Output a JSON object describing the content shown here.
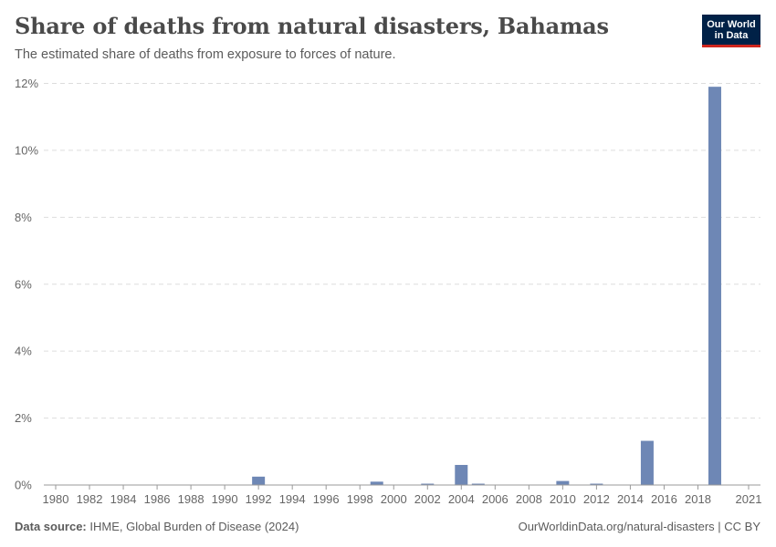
{
  "header": {
    "title": "Share of deaths from natural disasters, Bahamas",
    "subtitle": "The estimated share of deaths from exposure to forces of nature."
  },
  "logo": {
    "line1": "Our World",
    "line2": "in Data"
  },
  "footer": {
    "source_label": "Data source:",
    "source_text": "IHME, Global Burden of Disease (2024)",
    "link_text": "OurWorldinData.org/natural-disasters | CC BY"
  },
  "colors": {
    "bar": "#6e87b5",
    "logo_bg": "#002147",
    "logo_accent": "#ce261e"
  },
  "chart_data": {
    "type": "bar",
    "title": "Share of deaths from natural disasters, Bahamas",
    "xlim": [
      1980,
      2021
    ],
    "ylim": [
      0,
      12
    ],
    "y_ticks": [
      0,
      2,
      4,
      6,
      8,
      10,
      12
    ],
    "y_tick_labels": [
      "0%",
      "2%",
      "4%",
      "6%",
      "8%",
      "10%",
      "12%"
    ],
    "x_ticks": [
      1980,
      1982,
      1984,
      1986,
      1988,
      1990,
      1992,
      1994,
      1996,
      1998,
      2000,
      2002,
      2004,
      2006,
      2008,
      2010,
      2012,
      2014,
      2016,
      2018,
      2021
    ],
    "x_tick_labels": [
      "1980",
      "1982",
      "1984",
      "1986",
      "1988",
      "1990",
      "1992",
      "1994",
      "1996",
      "1998",
      "2000",
      "2002",
      "2004",
      "2006",
      "2008",
      "2010",
      "2012",
      "2014",
      "2016",
      "2018",
      "2021"
    ],
    "grid": "horizontal dashed",
    "series": [
      {
        "name": "",
        "points": [
          {
            "year": 1992,
            "value": 0.25
          },
          {
            "year": 1999,
            "value": 0.1
          },
          {
            "year": 2002,
            "value": 0.04
          },
          {
            "year": 2004,
            "value": 0.6
          },
          {
            "year": 2005,
            "value": 0.04
          },
          {
            "year": 2010,
            "value": 0.12
          },
          {
            "year": 2012,
            "value": 0.04
          },
          {
            "year": 2015,
            "value": 1.32
          },
          {
            "year": 2019,
            "value": 11.9
          }
        ]
      }
    ]
  }
}
